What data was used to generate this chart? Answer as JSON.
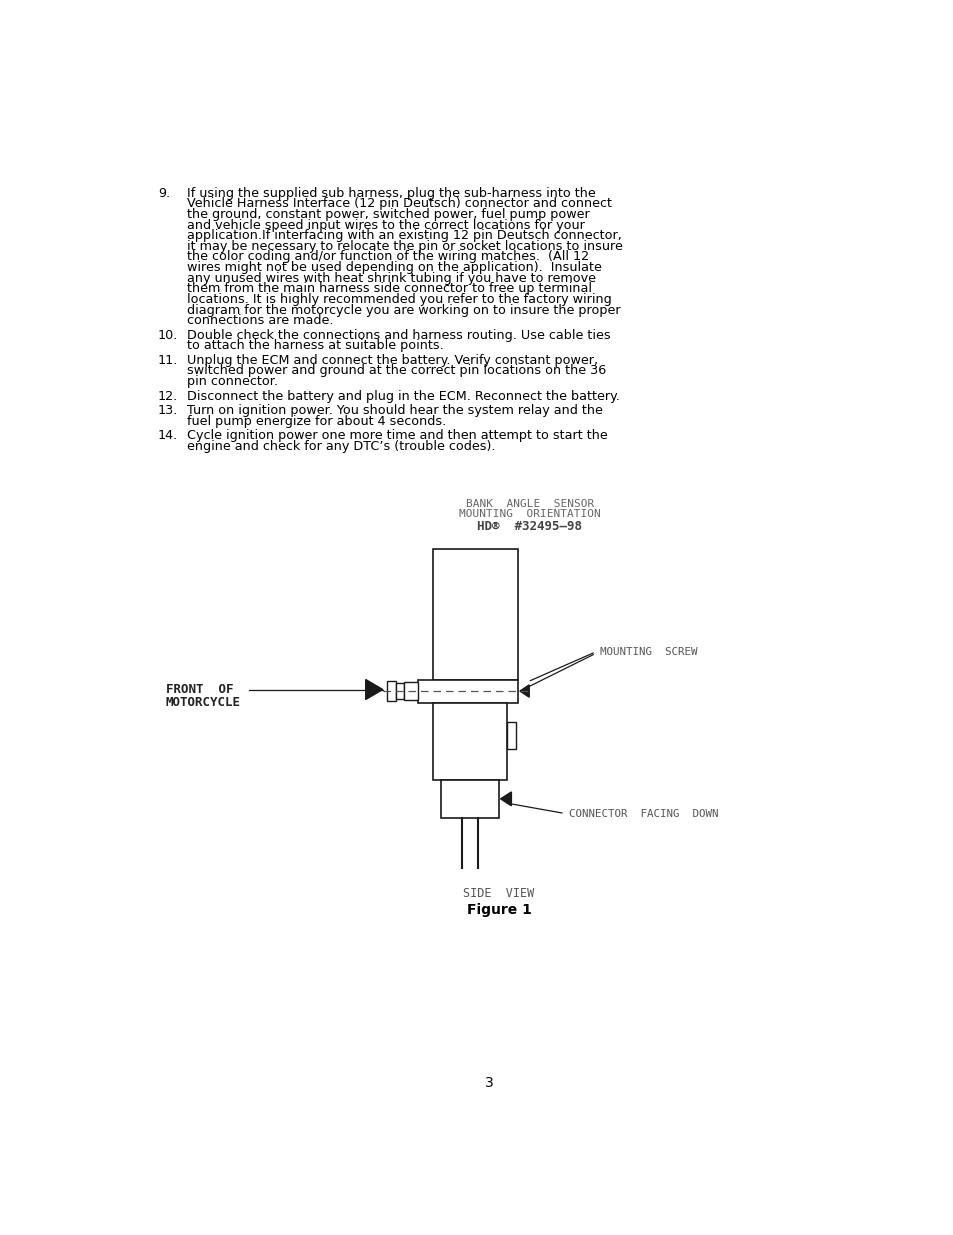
{
  "background_color": "#ffffff",
  "text_color": "#000000",
  "page_number": "3",
  "diagram_title_line1": "BANK  ANGLE  SENSOR",
  "diagram_title_line2": "MOUNTING  ORIENTATION",
  "diagram_title_line3": "HD®  #32495–98",
  "label_front_of": "FRONT  OF",
  "label_motorcycle": "MOTORCYCLE",
  "label_mounting_screw": "MOUNTING  SCREW",
  "label_connector_facing": "CONNECTOR  FACING  DOWN",
  "label_side_view": "SIDE  VIEW",
  "label_figure": "Figure 1"
}
